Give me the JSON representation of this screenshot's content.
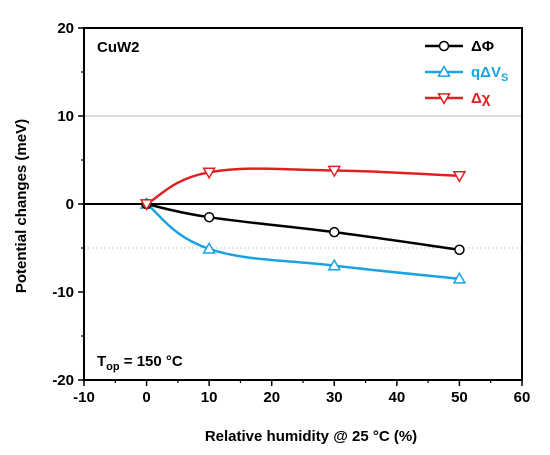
{
  "chart_data": {
    "type": "line",
    "sample_label": "CuW2",
    "condition_label": {
      "main": "T",
      "sub": "op",
      "rest": " = 150 °C"
    },
    "xlabel": "Relative humidity @ 25 °C (%)",
    "ylabel": "Potential changes (meV)",
    "xlim": [
      -10,
      60
    ],
    "ylim": [
      -20,
      20
    ],
    "xticks": [
      -10,
      0,
      10,
      20,
      30,
      40,
      50,
      60
    ],
    "yticks": [
      -20,
      -10,
      0,
      10,
      20
    ],
    "x_tick_labels": [
      "-10",
      "0",
      "10",
      "20",
      "30",
      "40",
      "50",
      "60"
    ],
    "y_tick_labels": [
      "-20",
      "-10",
      "0",
      "10",
      "20"
    ],
    "reference_lines": [
      {
        "y": 10,
        "style": "solid",
        "color": "#bbbbbb"
      },
      {
        "y": -5,
        "style": "dotted",
        "color": "#bbbbbb"
      },
      {
        "y": 0,
        "style": "solid",
        "color": "#000000"
      }
    ],
    "legend_position": "top-right",
    "series": [
      {
        "name": "ΔΦ",
        "color": "#000000",
        "marker": "circle",
        "x": [
          0,
          10,
          30,
          50
        ],
        "y": [
          0,
          -1.5,
          -3.2,
          -5.2
        ]
      },
      {
        "name": "qΔV",
        "name_sub": "S",
        "color": "#1aa3e0",
        "marker": "triangle-up",
        "x": [
          0,
          10,
          30,
          50
        ],
        "y": [
          0,
          -5.1,
          -7.0,
          -8.5
        ]
      },
      {
        "name": "Δχ",
        "color": "#e02020",
        "marker": "triangle-down",
        "x": [
          0,
          10,
          30,
          50
        ],
        "y": [
          0,
          3.6,
          3.8,
          3.2
        ]
      }
    ]
  }
}
